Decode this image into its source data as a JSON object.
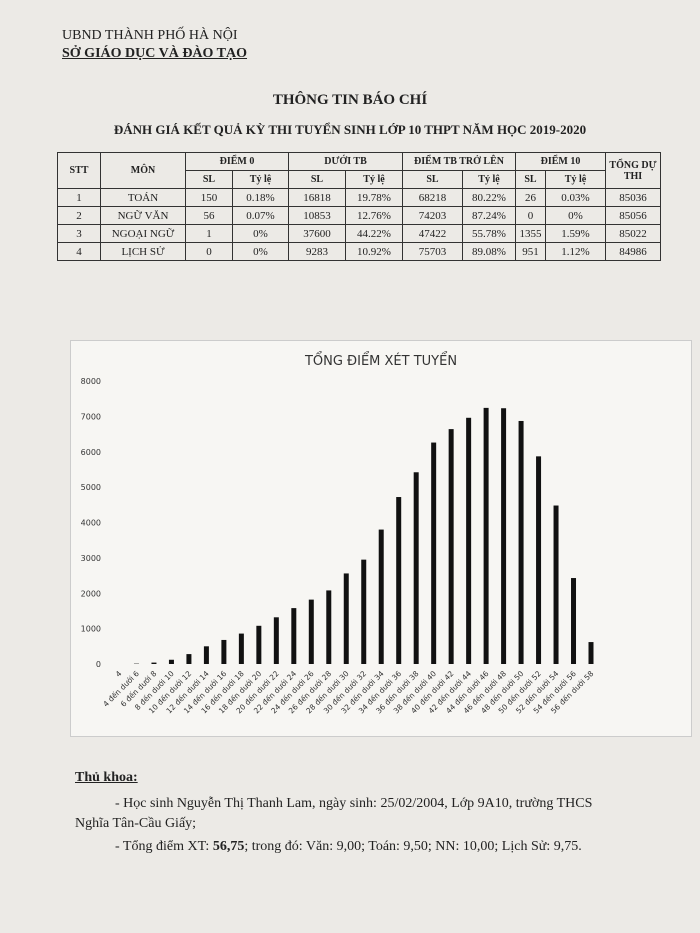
{
  "header": {
    "org": "UBND THÀNH PHỐ HÀ NỘI",
    "dept": "SỞ GIÁO DỤC VÀ ĐÀO TẠO"
  },
  "title": "THÔNG TIN BÁO CHÍ",
  "subtitle": "ĐÁNH GIÁ KẾT QUẢ KỲ THI TUYỂN SINH LỚP 10 THPT NĂM HỌC 2019-2020",
  "table": {
    "head": [
      "STT",
      "MÔN",
      "ĐIỂM 0",
      "DƯỚI TB",
      "ĐIỂM TB TRỞ LÊN",
      "ĐIỂM 10",
      "TỔNG DỰ THI"
    ],
    "subhead": [
      "SL",
      "Tỷ lệ",
      "SL",
      "Tỷ lệ",
      "SL",
      "Tỷ lệ",
      "SL",
      "Tỷ lệ"
    ],
    "rows": [
      [
        "1",
        "TOÁN",
        "150",
        "0.18%",
        "16818",
        "19.78%",
        "68218",
        "80.22%",
        "26",
        "0.03%",
        "85036"
      ],
      [
        "2",
        "NGỮ VĂN",
        "56",
        "0.07%",
        "10853",
        "12.76%",
        "74203",
        "87.24%",
        "0",
        "0%",
        "85056"
      ],
      [
        "3",
        "NGOẠI NGỮ",
        "1",
        "0%",
        "37600",
        "44.22%",
        "47422",
        "55.78%",
        "1355",
        "1.59%",
        "85022"
      ],
      [
        "4",
        "LỊCH SỬ",
        "0",
        "0%",
        "9283",
        "10.92%",
        "75703",
        "89.08%",
        "951",
        "1.12%",
        "84986"
      ]
    ]
  },
  "chart_data": {
    "type": "bar",
    "title": "TỔNG ĐIỂM XÉT TUYỂN",
    "color": "#111111",
    "categories": [
      "4",
      "4 đến dưới 6",
      "6 đến dưới 8",
      "8 đến dưới 10",
      "10 đến dưới 12",
      "12 đến dưới 14",
      "14 đến dưới 16",
      "16 đến dưới 18",
      "18 đến dưới 20",
      "20 đến dưới 22",
      "22 đến dưới 24",
      "24 đến dưới 26",
      "26 đến dưới 28",
      "28 đến dưới 30",
      "30 đến dưới 32",
      "32 đến dưới 34",
      "34 đến dưới 36",
      "36 đến dưới 38",
      "38 đến dưới 40",
      "40 đến dưới 42",
      "42 đến dưới 44",
      "44 đến dưới 46",
      "46 đến dưới 48",
      "48 đến dưới 50",
      "50 đến dưới 52",
      "52 đến dưới 54",
      "54 đến dưới 56",
      "56 đến dưới 58"
    ],
    "values": [
      0,
      10,
      40,
      120,
      280,
      500,
      680,
      860,
      1080,
      1320,
      1580,
      1820,
      2080,
      2560,
      2950,
      3800,
      4720,
      5420,
      6260,
      6640,
      6960,
      7240,
      7230,
      6870,
      5870,
      4480,
      2430,
      620
    ],
    "ylim": [
      0,
      8000
    ],
    "yticks": [
      0,
      1000,
      2000,
      3000,
      4000,
      5000,
      6000,
      7000,
      8000
    ]
  },
  "footer": {
    "heading": "Thủ khoa:",
    "line1": "- Học sinh Nguyễn Thị Thanh Lam, ngày sinh: 25/02/2004, Lớp 9A10, trường THCS",
    "line2": "Nghĩa Tân-Cầu Giấy;",
    "line3": [
      "- Tổng điểm XT: ",
      "56,75",
      "; trong đó: Văn: 9,00; Toán: 9,50; NN: 10,00; Lịch Sử: 9,75."
    ]
  }
}
